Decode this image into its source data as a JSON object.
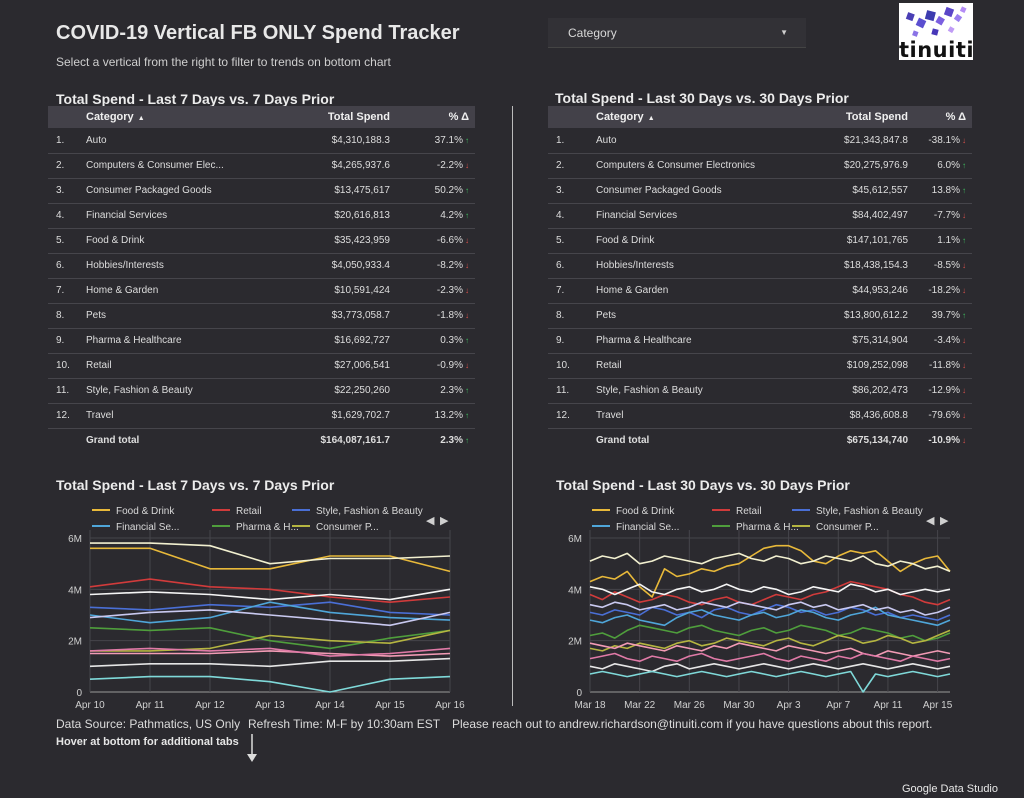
{
  "header": {
    "title": "COVID-19 Vertical FB ONLY Spend Tracker",
    "subtitle": "Select a vertical from the right to filter to trends on bottom chart"
  },
  "filter": {
    "label": "Category"
  },
  "logo": {
    "text": "tinuiti"
  },
  "colors": {
    "up": "#3fbf5f",
    "down": "#e0524d",
    "header_bg": "#434149",
    "background": "#2b2a2f"
  },
  "table_7": {
    "title": "Total Spend - Last 7 Days vs. 7 Days Prior",
    "headers": {
      "category": "Category",
      "spend": "Total Spend",
      "pct": "% Δ"
    },
    "rows": [
      {
        "num": "1.",
        "category": "Auto",
        "spend": "$4,310,188.3",
        "pct": "37.1%",
        "dir": "up"
      },
      {
        "num": "2.",
        "category": "Computers & Consumer Elec...",
        "spend": "$4,265,937.6",
        "pct": "-2.2%",
        "dir": "down"
      },
      {
        "num": "3.",
        "category": "Consumer Packaged Goods",
        "spend": "$13,475,617",
        "pct": "50.2%",
        "dir": "up"
      },
      {
        "num": "4.",
        "category": "Financial Services",
        "spend": "$20,616,813",
        "pct": "4.2%",
        "dir": "up"
      },
      {
        "num": "5.",
        "category": "Food & Drink",
        "spend": "$35,423,959",
        "pct": "-6.6%",
        "dir": "down"
      },
      {
        "num": "6.",
        "category": "Hobbies/Interests",
        "spend": "$4,050,933.4",
        "pct": "-8.2%",
        "dir": "down"
      },
      {
        "num": "7.",
        "category": "Home & Garden",
        "spend": "$10,591,424",
        "pct": "-2.3%",
        "dir": "down"
      },
      {
        "num": "8.",
        "category": "Pets",
        "spend": "$3,773,058.7",
        "pct": "-1.8%",
        "dir": "down"
      },
      {
        "num": "9.",
        "category": "Pharma & Healthcare",
        "spend": "$16,692,727",
        "pct": "0.3%",
        "dir": "up"
      },
      {
        "num": "10.",
        "category": "Retail",
        "spend": "$27,006,541",
        "pct": "-0.9%",
        "dir": "down"
      },
      {
        "num": "11.",
        "category": "Style, Fashion & Beauty",
        "spend": "$22,250,260",
        "pct": "2.3%",
        "dir": "up"
      },
      {
        "num": "12.",
        "category": "Travel",
        "spend": "$1,629,702.7",
        "pct": "13.2%",
        "dir": "up"
      }
    ],
    "grand": {
      "label": "Grand total",
      "spend": "$164,087,161.7",
      "pct": "2.3%",
      "dir": "up"
    }
  },
  "table_30": {
    "title": "Total Spend - Last 30 Days vs. 30 Days Prior",
    "headers": {
      "category": "Category",
      "spend": "Total Spend",
      "pct": "% Δ"
    },
    "rows": [
      {
        "num": "1.",
        "category": "Auto",
        "spend": "$21,343,847.8",
        "pct": "-38.1%",
        "dir": "down"
      },
      {
        "num": "2.",
        "category": "Computers & Consumer Electronics",
        "spend": "$20,275,976.9",
        "pct": "6.0%",
        "dir": "up"
      },
      {
        "num": "3.",
        "category": "Consumer Packaged Goods",
        "spend": "$45,612,557",
        "pct": "13.8%",
        "dir": "up"
      },
      {
        "num": "4.",
        "category": "Financial Services",
        "spend": "$84,402,497",
        "pct": "-7.7%",
        "dir": "down"
      },
      {
        "num": "5.",
        "category": "Food & Drink",
        "spend": "$147,101,765",
        "pct": "1.1%",
        "dir": "up"
      },
      {
        "num": "6.",
        "category": "Hobbies/Interests",
        "spend": "$18,438,154.3",
        "pct": "-8.5%",
        "dir": "down"
      },
      {
        "num": "7.",
        "category": "Home & Garden",
        "spend": "$44,953,246",
        "pct": "-18.2%",
        "dir": "down"
      },
      {
        "num": "8.",
        "category": "Pets",
        "spend": "$13,800,612.2",
        "pct": "39.7%",
        "dir": "up"
      },
      {
        "num": "9.",
        "category": "Pharma & Healthcare",
        "spend": "$75,314,904",
        "pct": "-3.4%",
        "dir": "down"
      },
      {
        "num": "10.",
        "category": "Retail",
        "spend": "$109,252,098",
        "pct": "-11.8%",
        "dir": "down"
      },
      {
        "num": "11.",
        "category": "Style, Fashion & Beauty",
        "spend": "$86,202,473",
        "pct": "-12.9%",
        "dir": "down"
      },
      {
        "num": "12.",
        "category": "Travel",
        "spend": "$8,436,608.8",
        "pct": "-79.6%",
        "dir": "down"
      }
    ],
    "grand": {
      "label": "Grand total",
      "spend": "$675,134,740",
      "pct": "-10.9%",
      "dir": "down"
    }
  },
  "footer": {
    "source": "Data Source: Pathmatics, US Only",
    "refresh": "Refresh Time: M-F by 10:30am EST",
    "contact": "Please reach out to andrew.richardson@tinuiti.com if you have questions about this report.",
    "hover": "Hover at bottom for additional tabs",
    "brand": "Google Data Studio"
  },
  "chart_data": [
    {
      "type": "line",
      "title": "Total Spend - Last 7 Days vs. 7 Days Prior",
      "legend_position": "top",
      "x": [
        "Apr 10",
        "Apr 11",
        "Apr 12",
        "Apr 13",
        "Apr 14",
        "Apr 15",
        "Apr 16"
      ],
      "yticks": [
        "0",
        "2M",
        "4M",
        "6M"
      ],
      "ylim": [
        0,
        6000000
      ],
      "grid": true,
      "series": [
        {
          "name": "Food & Drink",
          "color": "#e8b93a",
          "values": [
            5600000,
            5600000,
            4800000,
            4800000,
            5300000,
            5300000,
            4700000
          ]
        },
        {
          "name": "Retail",
          "color": "#d13b3b",
          "values": [
            4100000,
            4400000,
            4100000,
            4000000,
            3700000,
            3500000,
            3700000
          ]
        },
        {
          "name": "Style, Fashion & Beauty",
          "color": "#4a6fd6",
          "values": [
            3300000,
            3200000,
            3400000,
            3300000,
            3500000,
            3100000,
            3000000
          ]
        },
        {
          "name": "Financial Se...",
          "color": "#4fa6d9",
          "values": [
            3000000,
            2700000,
            2900000,
            3500000,
            3100000,
            2900000,
            2800000
          ]
        },
        {
          "name": "Pharma & H...",
          "color": "#4f9e3c",
          "values": [
            2500000,
            2400000,
            2500000,
            2000000,
            1700000,
            2100000,
            2400000
          ]
        },
        {
          "name": "Consumer P...",
          "color": "#b5b541",
          "values": [
            1600000,
            1600000,
            1700000,
            2200000,
            2000000,
            1900000,
            2400000
          ]
        },
        {
          "name": "",
          "color": "#f2f0d0",
          "values": [
            5800000,
            5800000,
            5700000,
            5000000,
            5200000,
            5200000,
            5300000
          ]
        },
        {
          "name": "",
          "color": "#f5f5f5",
          "values": [
            3800000,
            3900000,
            3800000,
            3600000,
            3800000,
            3600000,
            4000000
          ]
        },
        {
          "name": "",
          "color": "#c9c9f0",
          "values": [
            2900000,
            3100000,
            3200000,
            3000000,
            2800000,
            2600000,
            3100000
          ]
        },
        {
          "name": "",
          "color": "#f29bb5",
          "values": [
            1500000,
            1500000,
            1500000,
            1600000,
            1500000,
            1400000,
            1500000
          ]
        },
        {
          "name": "",
          "color": "#e07aa7",
          "values": [
            1600000,
            1700000,
            1600000,
            1700000,
            1400000,
            1500000,
            1700000
          ]
        },
        {
          "name": "",
          "color": "#e6e6e6",
          "values": [
            1000000,
            1100000,
            1100000,
            1000000,
            1200000,
            1200000,
            1300000
          ]
        },
        {
          "name": "",
          "color": "#7fd9d9",
          "values": [
            500000,
            600000,
            600000,
            400000,
            0,
            500000,
            600000
          ]
        }
      ]
    },
    {
      "type": "line",
      "title": "Total Spend - Last 30 Days vs. 30 Days Prior",
      "legend_position": "top",
      "x": [
        "Mar 18",
        "Mar 19",
        "Mar 20",
        "Mar 21",
        "Mar 22",
        "Mar 23",
        "Mar 24",
        "Mar 25",
        "Mar 26",
        "Mar 27",
        "Mar 28",
        "Mar 29",
        "Mar 30",
        "Mar 31",
        "Apr 1",
        "Apr 2",
        "Apr 3",
        "Apr 4",
        "Apr 5",
        "Apr 6",
        "Apr 7",
        "Apr 8",
        "Apr 9",
        "Apr 10",
        "Apr 11",
        "Apr 12",
        "Apr 13",
        "Apr 14",
        "Apr 15",
        "Apr 16"
      ],
      "xticks": [
        "Mar 18",
        "Mar 22",
        "Mar 26",
        "Mar 30",
        "Apr 3",
        "Apr 7",
        "Apr 11",
        "Apr 15"
      ],
      "yticks": [
        "0",
        "2M",
        "4M",
        "6M"
      ],
      "ylim": [
        0,
        6000000
      ],
      "grid": true,
      "series": [
        {
          "name": "Food & Drink",
          "color": "#e8b93a",
          "values": [
            4300000,
            4500000,
            4400000,
            4700000,
            4100000,
            3700000,
            4800000,
            4500000,
            4600000,
            4800000,
            4700000,
            4900000,
            5000000,
            5300000,
            5600000,
            5700000,
            5700000,
            5500000,
            5100000,
            5000000,
            5300000,
            5500000,
            5400000,
            5500000,
            5100000,
            4700000,
            5000000,
            5200000,
            5300000,
            4700000
          ]
        },
        {
          "name": "Retail",
          "color": "#d13b3b",
          "values": [
            3800000,
            3600000,
            3900000,
            3700000,
            3500000,
            3600000,
            3800000,
            3700000,
            3500000,
            3400000,
            3600000,
            3700000,
            3500000,
            3400000,
            3600000,
            3800000,
            3700000,
            3600000,
            3800000,
            3900000,
            4100000,
            4300000,
            4200000,
            4100000,
            4000000,
            3800000,
            3700000,
            3500000,
            3400000,
            3600000
          ]
        },
        {
          "name": "Style, Fashion & Beauty",
          "color": "#4a6fd6",
          "values": [
            3100000,
            3000000,
            3200000,
            3100000,
            3000000,
            3300000,
            3200000,
            3000000,
            3100000,
            2900000,
            3200000,
            3300000,
            3100000,
            3000000,
            3200000,
            3400000,
            3300000,
            3100000,
            3200000,
            3000000,
            3100000,
            3300000,
            3200000,
            3000000,
            3100000,
            2900000,
            3000000,
            2900000,
            2800000,
            3000000
          ]
        },
        {
          "name": "Financial Se...",
          "color": "#4fa6d9",
          "values": [
            2800000,
            2700000,
            2900000,
            3000000,
            2800000,
            2700000,
            2600000,
            2900000,
            3100000,
            3200000,
            3000000,
            2900000,
            2800000,
            3000000,
            3100000,
            2900000,
            3000000,
            3200000,
            3100000,
            2900000,
            2800000,
            3000000,
            3100000,
            3300000,
            3000000,
            2900000,
            2800000,
            2700000,
            2600000,
            2800000
          ]
        },
        {
          "name": "Pharma & H...",
          "color": "#4f9e3c",
          "values": [
            2200000,
            2300000,
            2100000,
            2400000,
            2600000,
            2500000,
            2400000,
            2300000,
            2500000,
            2600000,
            2400000,
            2300000,
            2200000,
            2400000,
            2500000,
            2300000,
            2400000,
            2600000,
            2500000,
            2400000,
            2200000,
            2300000,
            2500000,
            2400000,
            2300000,
            2100000,
            2200000,
            2000000,
            2100000,
            2300000
          ]
        },
        {
          "name": "Consumer P...",
          "color": "#b5b541",
          "values": [
            1700000,
            1600000,
            1800000,
            1700000,
            1900000,
            1800000,
            1700000,
            1900000,
            2000000,
            1800000,
            1900000,
            2100000,
            2000000,
            1900000,
            1800000,
            2000000,
            2100000,
            1900000,
            1800000,
            2000000,
            2200000,
            2100000,
            1900000,
            2000000,
            2200000,
            2100000,
            1900000,
            2000000,
            2200000,
            2400000
          ]
        },
        {
          "name": "",
          "color": "#f2f0d0",
          "values": [
            5100000,
            5300000,
            5200000,
            5400000,
            5000000,
            5100000,
            5300000,
            5200000,
            5100000,
            5000000,
            5200000,
            5300000,
            5400000,
            5200000,
            5100000,
            5300000,
            5200000,
            5000000,
            5100000,
            5300000,
            5200000,
            5100000,
            5300000,
            5000000,
            4900000,
            5100000,
            5000000,
            4800000,
            4900000,
            4700000
          ]
        },
        {
          "name": "",
          "color": "#f5f5f5",
          "values": [
            4100000,
            4000000,
            3800000,
            4000000,
            4200000,
            3900000,
            3800000,
            4000000,
            4100000,
            3900000,
            4000000,
            4200000,
            4000000,
            3900000,
            4100000,
            4000000,
            3800000,
            3900000,
            4100000,
            4000000,
            3900000,
            4200000,
            4100000,
            3900000,
            4000000,
            3800000,
            3900000,
            4000000,
            3900000,
            4000000
          ]
        },
        {
          "name": "",
          "color": "#c9c9f0",
          "values": [
            3400000,
            3300000,
            3500000,
            3400000,
            3200000,
            3300000,
            3400000,
            3200000,
            3300000,
            3500000,
            3400000,
            3300000,
            3500000,
            3400000,
            3300000,
            3200000,
            3400000,
            3500000,
            3300000,
            3400000,
            3200000,
            3300000,
            3400000,
            3200000,
            3300000,
            3100000,
            3200000,
            3000000,
            3100000,
            3300000
          ]
        },
        {
          "name": "",
          "color": "#f29bb5",
          "values": [
            1900000,
            1800000,
            1700000,
            1900000,
            1800000,
            1700000,
            1600000,
            1800000,
            1700000,
            1600000,
            1800000,
            1700000,
            1900000,
            1800000,
            1700000,
            1600000,
            1800000,
            1700000,
            1600000,
            1500000,
            1600000,
            1700000,
            1500000,
            1400000,
            1600000,
            1500000,
            1400000,
            1500000,
            1600000,
            1500000
          ]
        },
        {
          "name": "",
          "color": "#e07aa7",
          "values": [
            1300000,
            1400000,
            1500000,
            1300000,
            1200000,
            1400000,
            1300000,
            1200000,
            1400000,
            1500000,
            1300000,
            1200000,
            1300000,
            1400000,
            1500000,
            1300000,
            1200000,
            1400000,
            1300000,
            1200000,
            1400000,
            1300000,
            1500000,
            1400000,
            1300000,
            1200000,
            1400000,
            1300000,
            1200000,
            1300000
          ]
        },
        {
          "name": "",
          "color": "#e6e6e6",
          "values": [
            1000000,
            900000,
            1100000,
            1000000,
            900000,
            800000,
            1000000,
            1100000,
            900000,
            1000000,
            1100000,
            1000000,
            900000,
            1000000,
            1100000,
            1000000,
            900000,
            1000000,
            1100000,
            1000000,
            900000,
            1000000,
            1100000,
            1000000,
            900000,
            1000000,
            1100000,
            1000000,
            900000,
            1000000
          ]
        },
        {
          "name": "",
          "color": "#7fd9d9",
          "values": [
            700000,
            800000,
            700000,
            600000,
            700000,
            800000,
            700000,
            600000,
            700000,
            800000,
            700000,
            600000,
            700000,
            800000,
            700000,
            600000,
            700000,
            800000,
            700000,
            600000,
            700000,
            800000,
            0,
            700000,
            600000,
            700000,
            800000,
            700000,
            600000,
            700000
          ]
        }
      ]
    }
  ]
}
